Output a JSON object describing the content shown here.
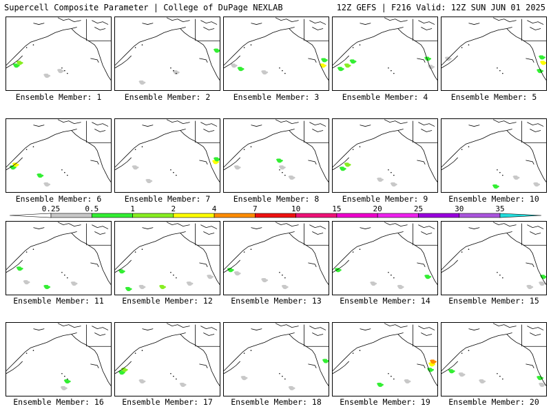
{
  "header": {
    "left": "Supercell Composite Parameter | College of DuPage NEXLAB",
    "right": "12Z GEFS | F216 Valid: 12Z SUN JUN 01 2025"
  },
  "legend": {
    "ticks": [
      "0.25",
      "0.5",
      "1",
      "2",
      "4",
      "7",
      "10",
      "15",
      "20",
      "25",
      "30",
      "35"
    ],
    "colors": [
      "#ffffff",
      "#c8c8c8",
      "#33ee33",
      "#88ee22",
      "#ffff00",
      "#ff8c00",
      "#ee1111",
      "#ee1177",
      "#ee00cc",
      "#ee22ee",
      "#9900dd",
      "#aa55dd",
      "#22dddd"
    ]
  },
  "panels": [
    {
      "label": "Ensemble Member: 1",
      "blobs": [
        [
          15,
          70,
          "#33ee33"
        ],
        [
          20,
          66,
          "#88ee22"
        ],
        [
          80,
          78,
          "#c8c8c8"
        ],
        [
          60,
          85,
          "#c8c8c8"
        ]
      ]
    },
    {
      "label": "Ensemble Member: 2",
      "blobs": [
        [
          150,
          48,
          "#33ee33"
        ],
        [
          90,
          80,
          "#c8c8c8"
        ],
        [
          40,
          95,
          "#c8c8c8"
        ]
      ]
    },
    {
      "label": "Ensemble Member: 3",
      "blobs": [
        [
          15,
          70,
          "#c8c8c8"
        ],
        [
          25,
          75,
          "#33ee33"
        ],
        [
          60,
          80,
          "#c8c8c8"
        ],
        [
          148,
          62,
          "#33ee33"
        ],
        [
          146,
          70,
          "#ffff00"
        ]
      ]
    },
    {
      "label": "Ensemble Member: 4",
      "blobs": [
        [
          12,
          75,
          "#33ee33"
        ],
        [
          22,
          70,
          "#88ee22"
        ],
        [
          30,
          64,
          "#33ee33"
        ],
        [
          140,
          60,
          "#33ee33"
        ],
        [
          145,
          72,
          "#c8c8c8"
        ]
      ]
    },
    {
      "label": "Ensemble Member: 5",
      "blobs": [
        [
          148,
          58,
          "#33ee33"
        ],
        [
          150,
          66,
          "#ffff00"
        ],
        [
          145,
          78,
          "#33ee33"
        ],
        [
          10,
          60,
          "#c8c8c8"
        ]
      ]
    },
    {
      "label": "Ensemble Member: 6",
      "blobs": [
        [
          10,
          70,
          "#33ee33"
        ],
        [
          14,
          66,
          "#ffff00"
        ],
        [
          50,
          82,
          "#33ee33"
        ],
        [
          60,
          95,
          "#c8c8c8"
        ]
      ]
    },
    {
      "label": "Ensemble Member: 7",
      "blobs": [
        [
          148,
          62,
          "#ffff00"
        ],
        [
          150,
          58,
          "#33ee33"
        ],
        [
          30,
          70,
          "#c8c8c8"
        ],
        [
          50,
          90,
          "#c8c8c8"
        ]
      ]
    },
    {
      "label": "Ensemble Member: 8",
      "blobs": [
        [
          82,
          60,
          "#33ee33"
        ],
        [
          86,
          70,
          "#c8c8c8"
        ],
        [
          20,
          70,
          "#c8c8c8"
        ],
        [
          100,
          85,
          "#c8c8c8"
        ]
      ]
    },
    {
      "label": "Ensemble Member: 9",
      "blobs": [
        [
          15,
          72,
          "#33ee33"
        ],
        [
          22,
          66,
          "#88ee22"
        ],
        [
          70,
          88,
          "#c8c8c8"
        ],
        [
          90,
          95,
          "#c8c8c8"
        ]
      ]
    },
    {
      "label": "Ensemble Member: 10",
      "blobs": [
        [
          140,
          95,
          "#c8c8c8"
        ],
        [
          80,
          98,
          "#33ee33"
        ],
        [
          110,
          85,
          "#c8c8c8"
        ]
      ]
    },
    {
      "label": "Ensemble Member: 11",
      "blobs": [
        [
          20,
          68,
          "#33ee33"
        ],
        [
          30,
          88,
          "#c8c8c8"
        ],
        [
          60,
          95,
          "#33ee33"
        ],
        [
          100,
          90,
          "#c8c8c8"
        ]
      ]
    },
    {
      "label": "Ensemble Member: 12",
      "blobs": [
        [
          10,
          72,
          "#33ee33"
        ],
        [
          20,
          98,
          "#33ee33"
        ],
        [
          40,
          95,
          "#c8c8c8"
        ],
        [
          70,
          95,
          "#88ee22"
        ],
        [
          110,
          90,
          "#c8c8c8"
        ],
        [
          140,
          80,
          "#c8c8c8"
        ]
      ]
    },
    {
      "label": "Ensemble Member: 13",
      "blobs": [
        [
          10,
          70,
          "#33ee33"
        ],
        [
          20,
          75,
          "#c8c8c8"
        ],
        [
          60,
          85,
          "#c8c8c8"
        ],
        [
          90,
          95,
          "#c8c8c8"
        ]
      ]
    },
    {
      "label": "Ensemble Member: 14",
      "blobs": [
        [
          8,
          70,
          "#33ee33"
        ],
        [
          140,
          80,
          "#33ee33"
        ],
        [
          60,
          90,
          "#c8c8c8"
        ],
        [
          100,
          95,
          "#c8c8c8"
        ]
      ]
    },
    {
      "label": "Ensemble Member: 15",
      "blobs": [
        [
          150,
          80,
          "#33ee33"
        ],
        [
          148,
          90,
          "#c8c8c8"
        ],
        [
          130,
          95,
          "#c8c8c8"
        ]
      ]
    },
    {
      "label": "Ensemble Member: 16",
      "blobs": [
        [
          90,
          85,
          "#33ee33"
        ],
        [
          85,
          95,
          "#c8c8c8"
        ]
      ]
    },
    {
      "label": "Ensemble Member: 17",
      "blobs": [
        [
          10,
          72,
          "#33ee33"
        ],
        [
          14,
          68,
          "#88ee22"
        ],
        [
          40,
          85,
          "#c8c8c8"
        ],
        [
          100,
          90,
          "#c8c8c8"
        ]
      ]
    },
    {
      "label": "Ensemble Member: 18",
      "blobs": [
        [
          150,
          55,
          "#33ee33"
        ],
        [
          30,
          80,
          "#c8c8c8"
        ],
        [
          100,
          95,
          "#c8c8c8"
        ]
      ]
    },
    {
      "label": "Ensemble Member: 19",
      "blobs": [
        [
          146,
          60,
          "#ffff00"
        ],
        [
          148,
          56,
          "#ff8c00"
        ],
        [
          144,
          68,
          "#33ee33"
        ],
        [
          110,
          85,
          "#c8c8c8"
        ],
        [
          70,
          90,
          "#33ee33"
        ]
      ]
    },
    {
      "label": "Ensemble Member: 20",
      "blobs": [
        [
          15,
          70,
          "#33ee33"
        ],
        [
          30,
          75,
          "#c8c8c8"
        ],
        [
          60,
          85,
          "#c8c8c8"
        ],
        [
          145,
          80,
          "#33ee33"
        ],
        [
          148,
          90,
          "#c8c8c8"
        ]
      ]
    }
  ]
}
